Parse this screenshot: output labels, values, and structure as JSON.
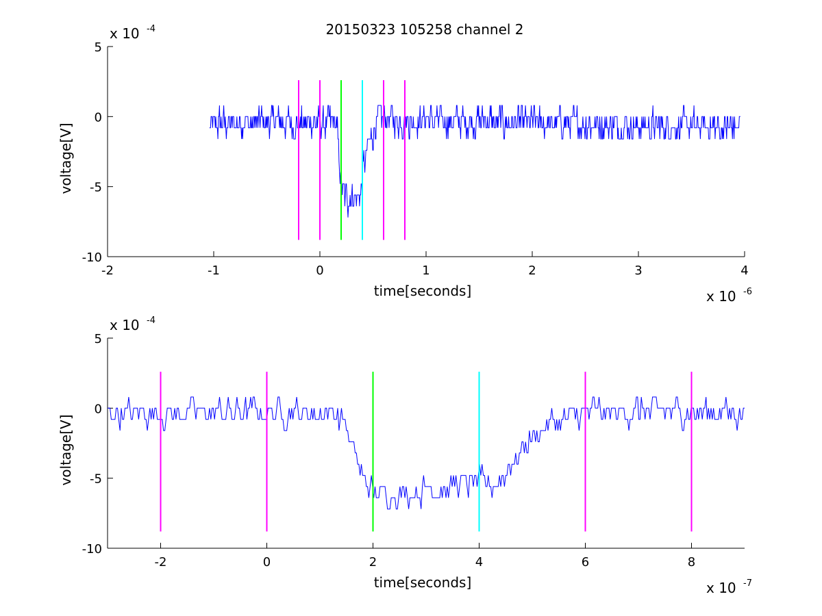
{
  "title": "20150323 105258 channel 2",
  "colors": {
    "signal": "#0000ff",
    "magenta": "#ff00ff",
    "green": "#00ff00",
    "cyan": "#00ffff",
    "axis": "#000000"
  },
  "chart_data": [
    {
      "type": "line",
      "name": "full-trace",
      "xlabel": "time[seconds]",
      "ylabel": "voltage[V]",
      "x_exponent": {
        "base": "x 10",
        "power": "-6"
      },
      "y_exponent": {
        "base": "x 10",
        "power": "-4"
      },
      "xlim": [
        -2,
        4
      ],
      "ylim": [
        -10,
        5
      ],
      "x_ticks": [
        -2,
        -1,
        0,
        1,
        2,
        3,
        4
      ],
      "x_tick_labels": [
        "-2",
        "-1",
        "0",
        "1",
        "2",
        "3",
        "4"
      ],
      "y_ticks": [
        -10,
        -5,
        0,
        5
      ],
      "y_tick_labels": [
        "-10",
        "-5",
        "0",
        "5"
      ],
      "signal": {
        "x_range": [
          -1.04,
          3.96
        ],
        "segments": [
          {
            "x": [
              -1.04,
              -0.95,
              -0.5,
              0.15,
              0.17
            ],
            "y": [
              -1,
              -0.5,
              -0.3,
              -0.5,
              -1.5
            ]
          },
          {
            "x": [
              0.17,
              0.2,
              0.22,
              0.38,
              0.4
            ],
            "y": [
              -2,
              -4.5,
              -5.8,
              -5.8,
              -5.0
            ]
          },
          {
            "x": [
              0.4,
              0.45,
              0.5,
              0.55,
              3.96
            ],
            "y": [
              -4.0,
              -2.5,
              -1,
              -0.2,
              -0.8
            ]
          }
        ],
        "noise_amplitude": 1.6
      },
      "markers": [
        {
          "x": -0.2,
          "color": "magenta",
          "y": [
            -8.8,
            2.6
          ]
        },
        {
          "x": 0.0,
          "color": "magenta",
          "y": [
            -8.8,
            2.6
          ]
        },
        {
          "x": 0.2,
          "color": "green",
          "y": [
            -8.8,
            2.6
          ]
        },
        {
          "x": 0.4,
          "color": "cyan",
          "y": [
            -8.8,
            2.6
          ]
        },
        {
          "x": 0.6,
          "color": "magenta",
          "y": [
            -8.8,
            2.6
          ]
        },
        {
          "x": 0.8,
          "color": "magenta",
          "y": [
            -8.8,
            2.6
          ]
        }
      ]
    },
    {
      "type": "line",
      "name": "zoomed-trace",
      "xlabel": "time[seconds]",
      "ylabel": "voltage[V]",
      "x_exponent": {
        "base": "x 10",
        "power": "-7"
      },
      "y_exponent": {
        "base": "x 10",
        "power": "-4"
      },
      "xlim": [
        -3,
        9
      ],
      "ylim": [
        -10,
        5
      ],
      "x_ticks": [
        -2,
        0,
        2,
        4,
        6,
        8
      ],
      "x_tick_labels": [
        "-2",
        "0",
        "2",
        "4",
        "6",
        "8"
      ],
      "y_ticks": [
        -10,
        -5,
        0,
        5
      ],
      "y_tick_labels": [
        "-10",
        "-5",
        "0",
        "5"
      ],
      "signal": {
        "x_range": [
          -3,
          9
        ],
        "segments": [
          {
            "x": [
              -3,
              -1,
              0.5,
              1.2,
              1.5
            ],
            "y": [
              -0.3,
              -0.3,
              -0.2,
              -0.3,
              -1.0
            ]
          },
          {
            "x": [
              1.5,
              1.7,
              1.8,
              2.0,
              2.2,
              3.0,
              4.0,
              4.3
            ],
            "y": [
              -2.0,
              -3.5,
              -5.0,
              -6.0,
              -6.2,
              -5.8,
              -5.2,
              -5.5
            ]
          },
          {
            "x": [
              4.3,
              4.6,
              5.0,
              5.5,
              6.0,
              9.0
            ],
            "y": [
              -5.5,
              -4.0,
              -2.0,
              -0.8,
              -0.3,
              -0.3
            ]
          }
        ],
        "noise_amplitude": 1.4
      },
      "markers": [
        {
          "x": -2,
          "color": "magenta",
          "y": [
            -8.8,
            2.6
          ]
        },
        {
          "x": 0,
          "color": "magenta",
          "y": [
            -8.8,
            2.6
          ]
        },
        {
          "x": 2,
          "color": "green",
          "y": [
            -8.8,
            2.6
          ]
        },
        {
          "x": 4,
          "color": "cyan",
          "y": [
            -8.8,
            2.6
          ]
        },
        {
          "x": 6,
          "color": "magenta",
          "y": [
            -8.8,
            2.6
          ]
        },
        {
          "x": 8,
          "color": "magenta",
          "y": [
            -8.8,
            2.6
          ]
        }
      ]
    }
  ]
}
